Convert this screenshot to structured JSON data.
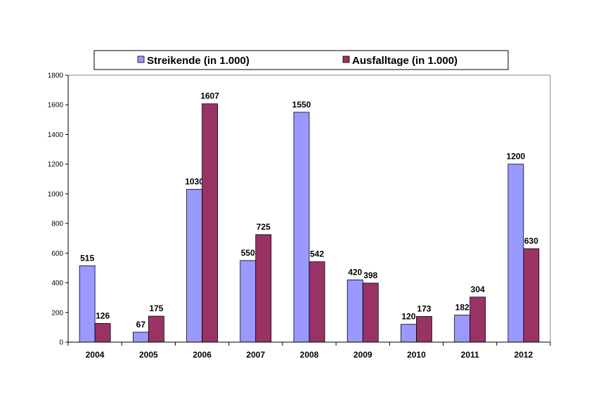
{
  "chart_data": {
    "type": "bar",
    "title": "",
    "xlabel": "",
    "ylabel": "",
    "categories": [
      "2004",
      "2005",
      "2006",
      "2007",
      "2008",
      "2009",
      "2010",
      "2011",
      "2012"
    ],
    "series": [
      {
        "name": "Streikende (in 1.000)",
        "color": "#9999ff",
        "values": [
          515,
          67,
          1030,
          550,
          1550,
          420,
          120,
          182,
          1200
        ]
      },
      {
        "name": "Ausfalltage (in 1.000)",
        "color": "#993366",
        "values": [
          126,
          175,
          1607,
          725,
          542,
          398,
          173,
          304,
          630
        ]
      }
    ],
    "ylim": [
      0,
      1800
    ],
    "yticks": [
      0,
      200,
      400,
      600,
      800,
      1000,
      1200,
      1400,
      1600,
      1800
    ],
    "grid": false,
    "legend": "top"
  }
}
